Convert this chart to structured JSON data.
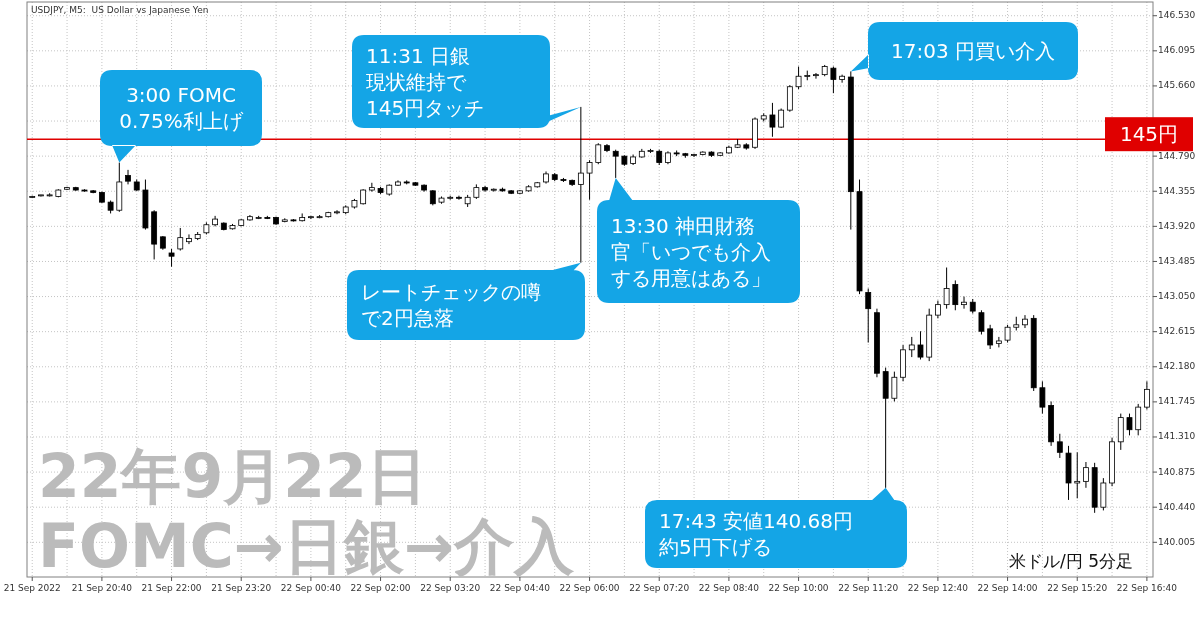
{
  "chart_data": {
    "type": "candlestick",
    "title": "22年9月22日\nFOMC→日銀→介入",
    "subtitle": "USDJPY, M5:  US Dollar vs Japanese Yen",
    "annotations": [
      {
        "text": "3:00 FOMC\n0.75%利上げ",
        "x": "2022-09-21T21:00",
        "y": 144.71
      },
      {
        "text": "11:31 日銀現状維持で145円タッチ",
        "x": "2022-09-22T05:50",
        "y": 145.4
      },
      {
        "text": "17:03 円買い介入",
        "x": "2022-09-22T11:00",
        "y": 145.84
      },
      {
        "text": "13:30 神田財務官「いつでも介入する用意はある」",
        "x": "2022-09-22T06:30",
        "y": 144.52
      },
      {
        "text": "レートチェックの噂で2円急落",
        "x": "2022-09-22T05:50",
        "y": 143.47
      },
      {
        "text": "17:43 安値140.68円約5円下げる",
        "x": "2022-09-22T11:40",
        "y": 140.68
      },
      "米ドル/円 5分足"
    ],
    "xlim": [
      "2022-09-21T19:14",
      "2022-09-22T16:47"
    ],
    "ylim": [
      139.575,
      146.7
    ],
    "xticks": [
      {
        "value": "2022-09-21T19:20",
        "label": "21 Sep 2022"
      },
      {
        "value": "2022-09-21T20:00",
        "label": null
      },
      {
        "value": "2022-09-21T20:40",
        "label": "21 Sep 20:40"
      },
      {
        "value": "2022-09-21T21:20",
        "label": null
      },
      {
        "value": "2022-09-21T22:00",
        "label": "21 Sep 22:00"
      },
      {
        "value": "2022-09-21T22:40",
        "label": null
      },
      {
        "value": "2022-09-21T23:20",
        "label": "21 Sep 23:20"
      },
      {
        "value": "2022-09-22T00:00",
        "label": null
      },
      {
        "value": "2022-09-22T00:40",
        "label": "22 Sep 00:40"
      },
      {
        "value": "2022-09-22T01:20",
        "label": null
      },
      {
        "value": "2022-09-22T02:00",
        "label": "22 Sep 02:00"
      },
      {
        "value": "2022-09-22T02:40",
        "label": null
      },
      {
        "value": "2022-09-22T03:20",
        "label": "22 Sep 03:20"
      },
      {
        "value": "2022-09-22T04:00",
        "label": null
      },
      {
        "value": "2022-09-22T04:40",
        "label": "22 Sep 04:40"
      },
      {
        "value": "2022-09-22T05:20",
        "label": null
      },
      {
        "value": "2022-09-22T06:00",
        "label": "22 Sep 06:00"
      },
      {
        "value": "2022-09-22T06:40",
        "label": null
      },
      {
        "value": "2022-09-22T07:20",
        "label": "22 Sep 07:20"
      },
      {
        "value": "2022-09-22T08:00",
        "label": null
      },
      {
        "value": "2022-09-22T08:40",
        "label": "22 Sep 08:40"
      },
      {
        "value": "2022-09-22T09:20",
        "label": null
      },
      {
        "value": "2022-09-22T10:00",
        "label": "22 Sep 10:00"
      },
      {
        "value": "2022-09-22T10:40",
        "label": null
      },
      {
        "value": "2022-09-22T11:20",
        "label": "22 Sep 11:20"
      },
      {
        "value": "2022-09-22T12:00",
        "label": null
      },
      {
        "value": "2022-09-22T12:40",
        "label": "22 Sep 12:40"
      },
      {
        "value": "2022-09-22T13:20",
        "label": null
      },
      {
        "value": "2022-09-22T14:00",
        "label": "22 Sep 14:00"
      },
      {
        "value": "2022-09-22T14:40",
        "label": null
      },
      {
        "value": "2022-09-22T15:20",
        "label": "22 Sep 15:20"
      },
      {
        "value": "2022-09-22T16:00",
        "label": null
      },
      {
        "value": "2022-09-22T16:40",
        "label": "22 Sep 16:40"
      }
    ],
    "yticks": [
      140.005,
      {
        "value": 140.44,
        "label": "140.440"
      },
      140.875,
      {
        "value": 141.31,
        "label": "141.310"
      },
      141.745,
      {
        "value": 142.18,
        "label": "142.180"
      },
      142.615,
      {
        "value": 143.05,
        "label": "143.050"
      },
      143.485,
      {
        "value": 143.92,
        "label": "143.920"
      },
      144.355,
      {
        "value": 144.79,
        "label": "144.790"
      },
      {
        "value": 145.225,
        "label": null
      },
      {
        "value": 145.66,
        "label": "145.660"
      },
      146.095,
      {
        "value": 146.53,
        "label": "146.530"
      }
    ],
    "grid": true,
    "ref_lines": [
      {
        "axis": "y",
        "value": 145,
        "label": "145円",
        "color": "#e00000"
      }
    ],
    "x": [
      "2022-09-21T19:20",
      "2022-09-21T19:30",
      "2022-09-21T19:40",
      "2022-09-21T19:50",
      "2022-09-21T20:00",
      "2022-09-21T20:10",
      "2022-09-21T20:20",
      "2022-09-21T20:30",
      "2022-09-21T20:40",
      "2022-09-21T20:50",
      "2022-09-21T21:00",
      "2022-09-21T21:10",
      "2022-09-21T21:20",
      "2022-09-21T21:30",
      "2022-09-21T21:40",
      "2022-09-21T21:50",
      "2022-09-21T22:00",
      "2022-09-21T22:10",
      "2022-09-21T22:20",
      "2022-09-21T22:30",
      "2022-09-21T22:40",
      "2022-09-21T22:50",
      "2022-09-21T23:00",
      "2022-09-21T23:10",
      "2022-09-21T23:20",
      "2022-09-21T23:30",
      "2022-09-21T23:40",
      "2022-09-21T23:50",
      "2022-09-22T00:00",
      "2022-09-22T00:10",
      "2022-09-22T00:20",
      "2022-09-22T00:30",
      "2022-09-22T00:40",
      "2022-09-22T00:50",
      "2022-09-22T01:00",
      "2022-09-22T01:10",
      "2022-09-22T01:20",
      "2022-09-22T01:30",
      "2022-09-22T01:40",
      "2022-09-22T01:50",
      "2022-09-22T02:00",
      "2022-09-22T02:10",
      "2022-09-22T02:20",
      "2022-09-22T02:30",
      "2022-09-22T02:40",
      "2022-09-22T02:50",
      "2022-09-22T03:00",
      "2022-09-22T03:10",
      "2022-09-22T03:20",
      "2022-09-22T03:30",
      "2022-09-22T03:40",
      "2022-09-22T03:50",
      "2022-09-22T04:00",
      "2022-09-22T04:10",
      "2022-09-22T04:20",
      "2022-09-22T04:30",
      "2022-09-22T04:40",
      "2022-09-22T04:50",
      "2022-09-22T05:00",
      "2022-09-22T05:10",
      "2022-09-22T05:20",
      "2022-09-22T05:30",
      "2022-09-22T05:40",
      "2022-09-22T05:50",
      "2022-09-22T06:00",
      "2022-09-22T06:10",
      "2022-09-22T06:20",
      "2022-09-22T06:30",
      "2022-09-22T06:40",
      "2022-09-22T06:50",
      "2022-09-22T07:00",
      "2022-09-22T07:10",
      "2022-09-22T07:20",
      "2022-09-22T07:30",
      "2022-09-22T07:40",
      "2022-09-22T07:50",
      "2022-09-22T08:00",
      "2022-09-22T08:10",
      "2022-09-22T08:20",
      "2022-09-22T08:30",
      "2022-09-22T08:40",
      "2022-09-22T08:50",
      "2022-09-22T09:00",
      "2022-09-22T09:10",
      "2022-09-22T09:20",
      "2022-09-22T09:30",
      "2022-09-22T09:40",
      "2022-09-22T09:50",
      "2022-09-22T10:00",
      "2022-09-22T10:10",
      "2022-09-22T10:20",
      "2022-09-22T10:30",
      "2022-09-22T10:40",
      "2022-09-22T10:50",
      "2022-09-22T11:00",
      "2022-09-22T11:10",
      "2022-09-22T11:20",
      "2022-09-22T11:30",
      "2022-09-22T11:40",
      "2022-09-22T11:50",
      "2022-09-22T12:00",
      "2022-09-22T12:10",
      "2022-09-22T12:20",
      "2022-09-22T12:30",
      "2022-09-22T12:40",
      "2022-09-22T12:50",
      "2022-09-22T13:00",
      "2022-09-22T13:10",
      "2022-09-22T13:20",
      "2022-09-22T13:30",
      "2022-09-22T13:40",
      "2022-09-22T13:50",
      "2022-09-22T14:00",
      "2022-09-22T14:10",
      "2022-09-22T14:20",
      "2022-09-22T14:30",
      "2022-09-22T14:40",
      "2022-09-22T14:50",
      "2022-09-22T15:00",
      "2022-09-22T15:10",
      "2022-09-22T15:20",
      "2022-09-22T15:30",
      "2022-09-22T15:40",
      "2022-09-22T15:50",
      "2022-09-22T16:00",
      "2022-09-22T16:10",
      "2022-09-22T16:20",
      "2022-09-22T16:30",
      "2022-09-22T16:40"
    ],
    "ohlc": [
      [
        144.28,
        144.3,
        144.27,
        144.29
      ],
      [
        144.3,
        144.31,
        144.29,
        144.31
      ],
      [
        144.31,
        144.33,
        144.29,
        144.31
      ],
      [
        144.29,
        144.38,
        144.28,
        144.37
      ],
      [
        144.38,
        144.41,
        144.37,
        144.4
      ],
      [
        144.4,
        144.41,
        144.36,
        144.37
      ],
      [
        144.37,
        144.38,
        144.35,
        144.36
      ],
      [
        144.36,
        144.37,
        144.33,
        144.34
      ],
      [
        144.34,
        144.35,
        144.21,
        144.22
      ],
      [
        144.22,
        144.24,
        144.08,
        144.12
      ],
      [
        144.12,
        144.71,
        144.1,
        144.47
      ],
      [
        144.55,
        144.62,
        144.44,
        144.48
      ],
      [
        144.47,
        144.5,
        144.36,
        144.37
      ],
      [
        144.37,
        144.5,
        143.88,
        143.9
      ],
      [
        144.1,
        144.12,
        143.51,
        143.7
      ],
      [
        143.79,
        143.8,
        143.63,
        143.65
      ],
      [
        143.59,
        143.64,
        143.42,
        143.55
      ],
      [
        143.64,
        143.9,
        143.62,
        143.78
      ],
      [
        143.73,
        143.82,
        143.7,
        143.77
      ],
      [
        143.77,
        143.85,
        143.75,
        143.82
      ],
      [
        143.84,
        143.97,
        143.82,
        143.94
      ],
      [
        143.94,
        144.05,
        143.92,
        144.01
      ],
      [
        143.96,
        143.97,
        143.87,
        143.88
      ],
      [
        143.89,
        143.95,
        143.88,
        143.93
      ],
      [
        143.93,
        144.01,
        143.92,
        144.0
      ],
      [
        144.0,
        144.06,
        143.99,
        144.04
      ],
      [
        144.02,
        144.05,
        144.01,
        144.03
      ],
      [
        144.03,
        144.05,
        144.01,
        144.02
      ],
      [
        144.03,
        144.04,
        143.94,
        143.95
      ],
      [
        143.98,
        144.02,
        143.97,
        144.0
      ],
      [
        144.0,
        144.01,
        143.98,
        143.99
      ],
      [
        143.99,
        144.08,
        143.98,
        144.03
      ],
      [
        144.03,
        144.05,
        144.01,
        144.04
      ],
      [
        144.04,
        144.06,
        144.02,
        144.04
      ],
      [
        144.04,
        144.1,
        144.03,
        144.09
      ],
      [
        144.09,
        144.12,
        144.07,
        144.1
      ],
      [
        144.09,
        144.18,
        144.07,
        144.16
      ],
      [
        144.16,
        144.26,
        144.14,
        144.24
      ],
      [
        144.2,
        144.38,
        144.19,
        144.37
      ],
      [
        144.37,
        144.46,
        144.35,
        144.4
      ],
      [
        144.39,
        144.41,
        144.32,
        144.34
      ],
      [
        144.32,
        144.44,
        144.3,
        144.43
      ],
      [
        144.43,
        144.49,
        144.42,
        144.47
      ],
      [
        144.47,
        144.49,
        144.44,
        144.46
      ],
      [
        144.46,
        144.47,
        144.42,
        144.43
      ],
      [
        144.43,
        144.44,
        144.35,
        144.37
      ],
      [
        144.36,
        144.37,
        144.18,
        144.2
      ],
      [
        144.22,
        144.29,
        144.2,
        144.27
      ],
      [
        144.27,
        144.3,
        144.25,
        144.28
      ],
      [
        144.28,
        144.3,
        144.25,
        144.27
      ],
      [
        144.2,
        144.31,
        144.16,
        144.28
      ],
      [
        144.28,
        144.44,
        144.26,
        144.4
      ],
      [
        144.4,
        144.42,
        144.35,
        144.37
      ],
      [
        144.37,
        144.39,
        144.35,
        144.38
      ],
      [
        144.38,
        144.4,
        144.35,
        144.36
      ],
      [
        144.36,
        144.37,
        144.32,
        144.33
      ],
      [
        144.33,
        144.37,
        144.32,
        144.36
      ],
      [
        144.36,
        144.43,
        144.35,
        144.41
      ],
      [
        144.41,
        144.47,
        144.4,
        144.46
      ],
      [
        144.47,
        144.6,
        144.45,
        144.57
      ],
      [
        144.56,
        144.58,
        144.48,
        144.5
      ],
      [
        144.5,
        144.52,
        144.47,
        144.49
      ],
      [
        144.49,
        144.5,
        144.42,
        144.44
      ],
      [
        144.44,
        145.4,
        143.47,
        144.58
      ],
      [
        144.58,
        144.74,
        144.25,
        144.71
      ],
      [
        144.71,
        144.95,
        144.69,
        144.93
      ],
      [
        144.92,
        144.94,
        144.84,
        144.86
      ],
      [
        144.85,
        144.87,
        144.52,
        144.79
      ],
      [
        144.79,
        144.8,
        144.67,
        144.69
      ],
      [
        144.7,
        144.81,
        144.68,
        144.78
      ],
      [
        144.78,
        144.88,
        144.77,
        144.85
      ],
      [
        144.85,
        144.88,
        144.83,
        144.86
      ],
      [
        144.85,
        144.87,
        144.68,
        144.71
      ],
      [
        144.71,
        144.85,
        144.69,
        144.83
      ],
      [
        144.83,
        144.86,
        144.79,
        144.82
      ],
      [
        144.82,
        144.83,
        144.77,
        144.8
      ],
      [
        144.8,
        144.82,
        144.78,
        144.81
      ],
      [
        144.81,
        144.85,
        144.8,
        144.84
      ],
      [
        144.84,
        144.85,
        144.78,
        144.8
      ],
      [
        144.8,
        144.84,
        144.79,
        144.83
      ],
      [
        144.83,
        144.92,
        144.82,
        144.9
      ],
      [
        144.9,
        145.0,
        144.89,
        144.93
      ],
      [
        144.93,
        144.95,
        144.87,
        144.89
      ],
      [
        144.9,
        145.27,
        144.88,
        145.25
      ],
      [
        145.25,
        145.32,
        145.22,
        145.29
      ],
      [
        145.3,
        145.45,
        145.03,
        145.15
      ],
      [
        145.15,
        145.38,
        145.14,
        145.36
      ],
      [
        145.36,
        145.67,
        145.34,
        145.65
      ],
      [
        145.65,
        145.9,
        145.62,
        145.78
      ],
      [
        145.78,
        145.85,
        145.73,
        145.79
      ],
      [
        145.79,
        145.82,
        145.75,
        145.8
      ],
      [
        145.8,
        145.92,
        145.78,
        145.9
      ],
      [
        145.88,
        145.9,
        145.57,
        145.74
      ],
      [
        145.74,
        145.8,
        145.7,
        145.78
      ],
      [
        145.77,
        145.84,
        143.88,
        144.35
      ],
      [
        144.35,
        144.5,
        143.08,
        143.12
      ],
      [
        143.1,
        143.15,
        142.48,
        142.9
      ],
      [
        142.85,
        142.9,
        142.05,
        142.1
      ],
      [
        142.12,
        142.17,
        140.68,
        141.79
      ],
      [
        141.79,
        142.12,
        141.75,
        142.05
      ],
      [
        142.05,
        142.45,
        142.0,
        142.39
      ],
      [
        142.39,
        142.55,
        142.3,
        142.45
      ],
      [
        142.45,
        142.62,
        142.27,
        142.3
      ],
      [
        142.3,
        142.9,
        142.25,
        142.82
      ],
      [
        142.82,
        143.0,
        142.78,
        142.95
      ],
      [
        142.95,
        143.41,
        142.9,
        143.15
      ],
      [
        143.2,
        143.25,
        142.88,
        142.95
      ],
      [
        142.95,
        143.05,
        142.9,
        142.98
      ],
      [
        142.98,
        143.02,
        142.84,
        142.87
      ],
      [
        142.85,
        142.88,
        142.58,
        142.62
      ],
      [
        142.65,
        142.7,
        142.4,
        142.45
      ],
      [
        142.47,
        142.55,
        142.42,
        142.5
      ],
      [
        142.51,
        142.7,
        142.48,
        142.67
      ],
      [
        142.67,
        142.8,
        142.63,
        142.7
      ],
      [
        142.7,
        142.82,
        142.66,
        142.77
      ],
      [
        142.78,
        142.82,
        141.88,
        141.92
      ],
      [
        141.92,
        142.0,
        141.6,
        141.68
      ],
      [
        141.7,
        141.75,
        141.2,
        141.25
      ],
      [
        141.25,
        141.35,
        141.05,
        141.12
      ],
      [
        141.11,
        141.2,
        140.53,
        140.74
      ],
      [
        140.74,
        141.12,
        140.55,
        140.76
      ],
      [
        140.76,
        141.0,
        140.68,
        140.93
      ],
      [
        140.93,
        140.99,
        140.37,
        140.44
      ],
      [
        140.44,
        140.8,
        140.4,
        140.74
      ],
      [
        140.74,
        141.3,
        140.7,
        141.25
      ],
      [
        141.25,
        141.6,
        141.15,
        141.55
      ],
      [
        141.55,
        141.6,
        141.33,
        141.4
      ],
      [
        141.4,
        141.72,
        141.33,
        141.68
      ],
      [
        141.68,
        142.0,
        141.65,
        141.9
      ]
    ]
  }
}
